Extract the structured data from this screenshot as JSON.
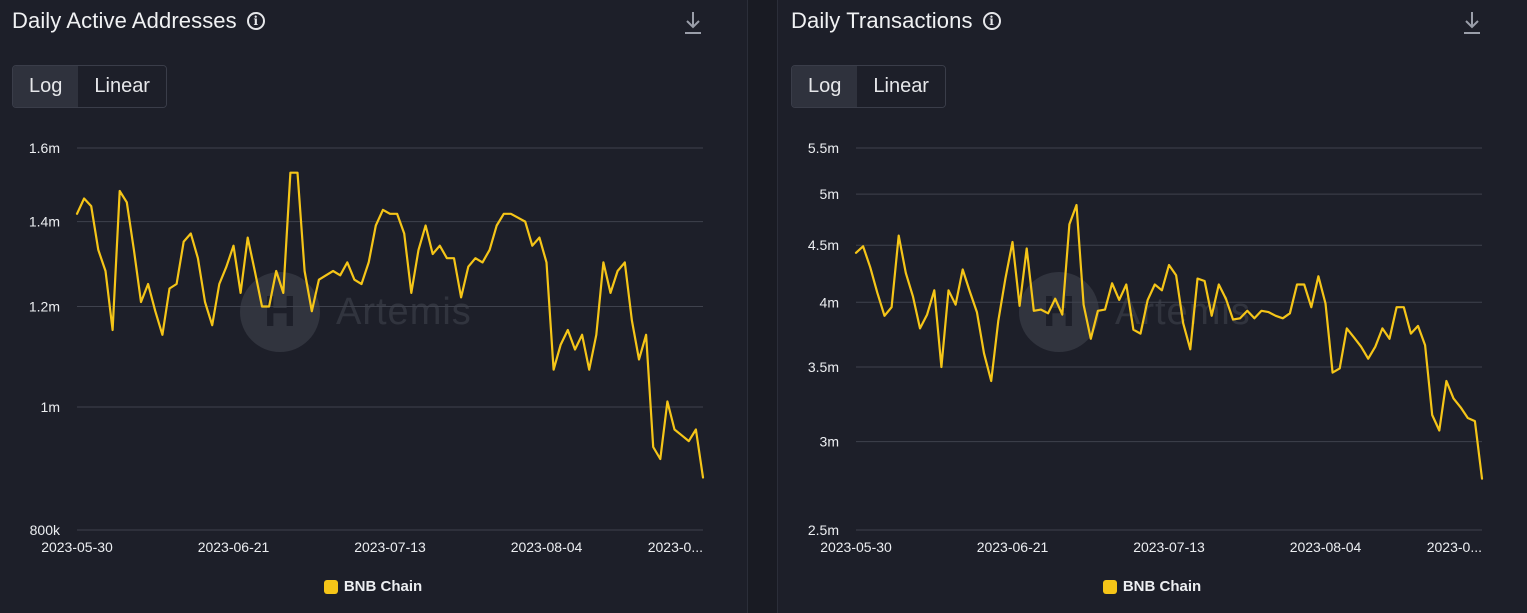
{
  "colors": {
    "series": "#f5c518",
    "grid": "#3f424d",
    "background": "#1d1f29"
  },
  "panels": [
    {
      "title": "Daily Active Addresses",
      "info_icon": "info-icon",
      "download_icon": "download-icon",
      "scale_toggle": {
        "options": [
          "Log",
          "Linear"
        ],
        "selected": "Log"
      },
      "watermark": "Artemis",
      "legend": {
        "label": "BNB Chain",
        "color": "#f5c518"
      }
    },
    {
      "title": "Daily Transactions",
      "info_icon": "info-icon",
      "download_icon": "download-icon",
      "scale_toggle": {
        "options": [
          "Log",
          "Linear"
        ],
        "selected": "Log"
      },
      "watermark": "Artemis",
      "legend": {
        "label": "BNB Chain",
        "color": "#f5c518"
      }
    }
  ],
  "chart_data": [
    {
      "type": "line",
      "title": "Daily Active Addresses",
      "scale": "log",
      "ylim": [
        800000,
        1600000
      ],
      "y_ticks": [
        {
          "value": 800000,
          "label": "800k"
        },
        {
          "value": 1000000,
          "label": "1m"
        },
        {
          "value": 1200000,
          "label": "1.2m"
        },
        {
          "value": 1400000,
          "label": "1.4m"
        },
        {
          "value": 1600000,
          "label": "1.6m"
        }
      ],
      "x_start": "2023-05-30",
      "x_ticks": [
        {
          "index": 0,
          "label": "2023-05-30"
        },
        {
          "index": 22,
          "label": "2023-06-21"
        },
        {
          "index": 44,
          "label": "2023-07-13"
        },
        {
          "index": 66,
          "label": "2023-08-04"
        },
        {
          "index": 88,
          "label": "2023-0..."
        }
      ],
      "grid": true,
      "legend_position": "bottom-center",
      "series": [
        {
          "name": "BNB Chain",
          "color": "#f5c518",
          "values": [
            1420000,
            1460000,
            1440000,
            1330000,
            1280000,
            1150000,
            1480000,
            1450000,
            1330000,
            1210000,
            1250000,
            1190000,
            1140000,
            1240000,
            1250000,
            1350000,
            1370000,
            1310000,
            1210000,
            1160000,
            1250000,
            1290000,
            1340000,
            1230000,
            1360000,
            1280000,
            1200000,
            1200000,
            1280000,
            1230000,
            1530000,
            1530000,
            1280000,
            1190000,
            1260000,
            1270000,
            1280000,
            1270000,
            1300000,
            1260000,
            1250000,
            1300000,
            1390000,
            1430000,
            1420000,
            1420000,
            1370000,
            1230000,
            1330000,
            1390000,
            1320000,
            1340000,
            1310000,
            1310000,
            1220000,
            1290000,
            1310000,
            1300000,
            1330000,
            1390000,
            1420000,
            1420000,
            1410000,
            1400000,
            1340000,
            1360000,
            1300000,
            1070000,
            1120000,
            1150000,
            1110000,
            1140000,
            1070000,
            1140000,
            1300000,
            1230000,
            1280000,
            1300000,
            1170000,
            1090000,
            1140000,
            930000,
            910000,
            1010000,
            960000,
            950000,
            940000,
            960000,
            880000
          ]
        }
      ]
    },
    {
      "type": "line",
      "title": "Daily Transactions",
      "scale": "log",
      "ylim": [
        2500000,
        5500000
      ],
      "y_ticks": [
        {
          "value": 2500000,
          "label": "2.5m"
        },
        {
          "value": 3000000,
          "label": "3m"
        },
        {
          "value": 3500000,
          "label": "3.5m"
        },
        {
          "value": 4000000,
          "label": "4m"
        },
        {
          "value": 4500000,
          "label": "4.5m"
        },
        {
          "value": 5000000,
          "label": "5m"
        },
        {
          "value": 5500000,
          "label": "5.5m"
        }
      ],
      "x_start": "2023-05-30",
      "x_ticks": [
        {
          "index": 0,
          "label": "2023-05-30"
        },
        {
          "index": 22,
          "label": "2023-06-21"
        },
        {
          "index": 44,
          "label": "2023-07-13"
        },
        {
          "index": 66,
          "label": "2023-08-04"
        },
        {
          "index": 88,
          "label": "2023-0..."
        }
      ],
      "grid": true,
      "legend_position": "bottom-center",
      "series": [
        {
          "name": "BNB Chain",
          "color": "#f5c518",
          "values": [
            4430000,
            4490000,
            4300000,
            4080000,
            3890000,
            3960000,
            4590000,
            4250000,
            4050000,
            3790000,
            3900000,
            4100000,
            3500000,
            4100000,
            3980000,
            4280000,
            4090000,
            3920000,
            3600000,
            3400000,
            3850000,
            4200000,
            4530000,
            3970000,
            4470000,
            3930000,
            3940000,
            3910000,
            4030000,
            3900000,
            4700000,
            4890000,
            3980000,
            3710000,
            3930000,
            3940000,
            4160000,
            4020000,
            4150000,
            3780000,
            3750000,
            4020000,
            4150000,
            4100000,
            4320000,
            4230000,
            3830000,
            3630000,
            4200000,
            4180000,
            3890000,
            4150000,
            4030000,
            3860000,
            3870000,
            3930000,
            3870000,
            3930000,
            3920000,
            3890000,
            3870000,
            3910000,
            4150000,
            4150000,
            3960000,
            4220000,
            3990000,
            3460000,
            3490000,
            3790000,
            3720000,
            3650000,
            3560000,
            3650000,
            3790000,
            3710000,
            3960000,
            3960000,
            3750000,
            3810000,
            3660000,
            3170000,
            3070000,
            3400000,
            3280000,
            3220000,
            3150000,
            3130000,
            2780000
          ]
        }
      ]
    }
  ]
}
